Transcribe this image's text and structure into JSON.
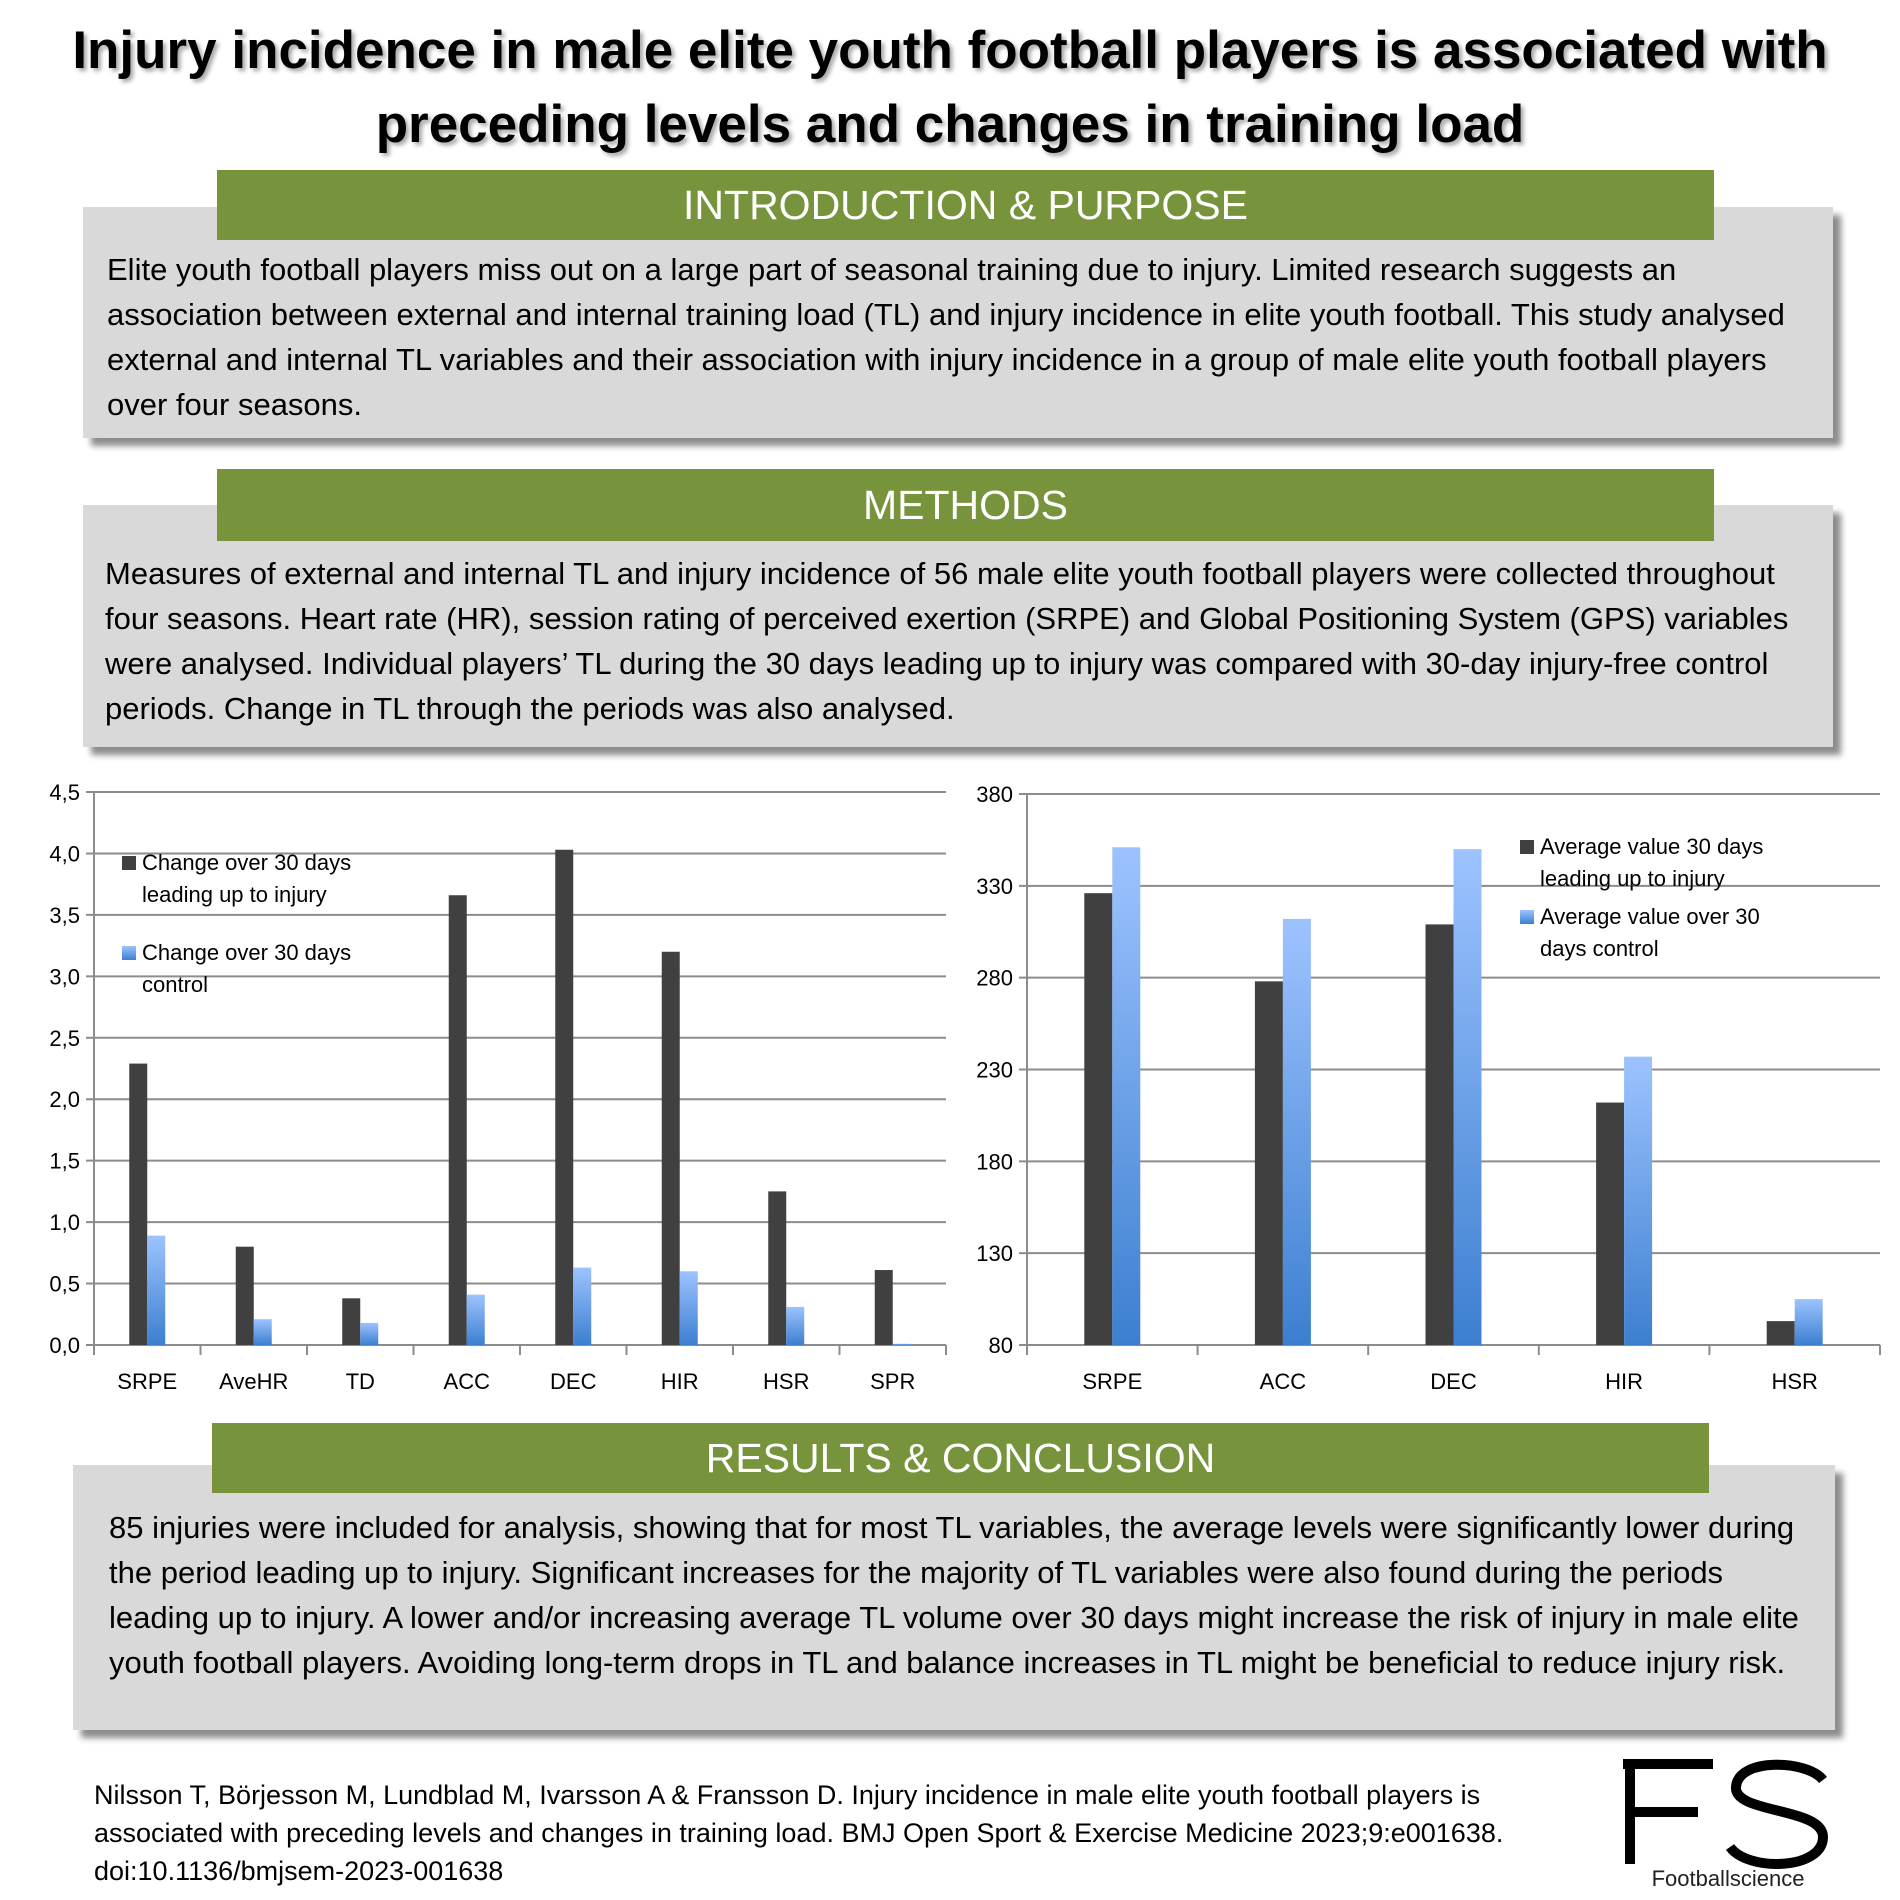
{
  "title": {
    "line1": "Injury incidence in male elite youth football players is associated with",
    "line2": "preceding levels and changes in training load"
  },
  "intro": {
    "heading": "INTRODUCTION & PURPOSE",
    "text": "Elite youth football players miss out on a large part of seasonal training due to injury. Limited research suggests an association between external and internal training load (TL) and injury incidence in elite youth football. This study analysed external and internal TL variables and their association with injury incidence in a group of male elite youth football players over four seasons."
  },
  "methods": {
    "heading": "METHODS",
    "text": "Measures of external and internal TL and injury incidence of 56 male elite youth football players were collected throughout four seasons. Heart rate (HR), session rating of perceived exertion (SRPE) and Global Positioning System (GPS) variables were analysed. Individual players’ TL during the 30 days leading up to injury was compared with 30-day injury-free control periods. Change in TL through the periods was also analysed."
  },
  "results": {
    "heading": "RESULTS & CONCLUSION",
    "text": "85 injuries were included for analysis, showing that for most TL variables, the average levels were significantly lower during the period leading up to injury. Significant increases for the majority of TL variables were also found during the periods leading up to injury. A lower and/or increasing average TL volume over 30 days might increase the risk of injury in male elite youth football players. Avoiding long-term drops in TL and balance increases in TL might be beneficial to reduce injury risk."
  },
  "citation": "Nilsson T, Börjesson M, Lundblad M, Ivarsson A & Fransson D. Injury incidence in male elite youth football players is associated with preceding levels and changes in training load. BMJ Open Sport & Exercise Medicine 2023;9:e001638. doi:10.1136/bmjsem-2023-001638",
  "logo": {
    "letters": "FS",
    "name": "Footballscience"
  },
  "colors": {
    "header_green": "#77933c",
    "box_grey": "#d9d9d9",
    "series_dark": "#404040",
    "series_light_top": "#9dc3ff",
    "series_light_bottom": "#3c7fd0"
  },
  "chart_data": [
    {
      "type": "bar",
      "categories": [
        "SRPE",
        "AveHR",
        "TD",
        "ACC",
        "DEC",
        "HIR",
        "HSR",
        "SPR"
      ],
      "series": [
        {
          "name": "Change over 30 days leading up to injury",
          "values": [
            2.29,
            0.8,
            0.38,
            3.66,
            4.03,
            3.2,
            1.25,
            0.61
          ]
        },
        {
          "name": "Change over 30 days control",
          "values": [
            0.89,
            0.21,
            0.18,
            0.41,
            0.63,
            0.6,
            0.31,
            0.01
          ]
        }
      ],
      "ylim": [
        0,
        4.5
      ],
      "yticks": [
        "0,0",
        "0,5",
        "1,0",
        "1,5",
        "2,0",
        "2,5",
        "3,0",
        "3,5",
        "4,0",
        "4,5"
      ],
      "grid": true,
      "legend": "top-left",
      "legend_lines": [
        [
          "Change over 30 days",
          "leading up to injury"
        ],
        [
          "Change over 30 days",
          "control"
        ]
      ]
    },
    {
      "type": "bar",
      "categories": [
        "SRPE",
        "ACC",
        "DEC",
        "HIR",
        "HSR"
      ],
      "series": [
        {
          "name": "Average value 30 days leading up to injury",
          "values": [
            326,
            278,
            309,
            212,
            93
          ]
        },
        {
          "name": "Average value over 30 days control",
          "values": [
            351,
            312,
            350,
            237,
            105
          ]
        }
      ],
      "ylim": [
        80,
        380
      ],
      "yticks": [
        "80",
        "130",
        "180",
        "230",
        "280",
        "330",
        "380"
      ],
      "grid": true,
      "legend": "top-right",
      "legend_lines": [
        [
          "Average value 30 days",
          "leading up to injury"
        ],
        [
          "Average value over 30",
          "days control"
        ]
      ]
    }
  ]
}
